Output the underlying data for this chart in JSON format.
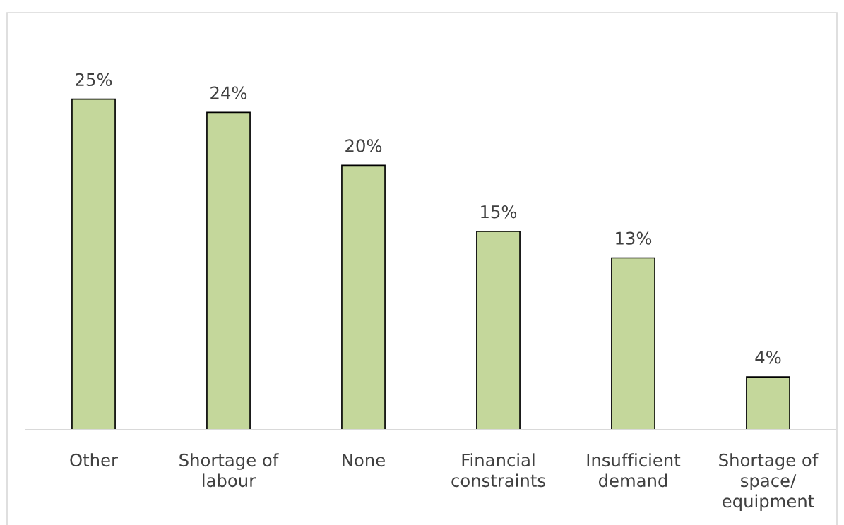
{
  "chart_data": {
    "type": "bar",
    "categories": [
      "Other",
      "Shortage of\nlabour",
      "None",
      "Financial\nconstraints",
      "Insufficient\ndemand",
      "Shortage of\nspace/\nequipment"
    ],
    "values": [
      25,
      24,
      20,
      15,
      13,
      4
    ],
    "value_labels": [
      "25%",
      "24%",
      "20%",
      "15%",
      "13%",
      "4%"
    ],
    "color": "#c4d79b",
    "grid": false,
    "legend": false
  }
}
